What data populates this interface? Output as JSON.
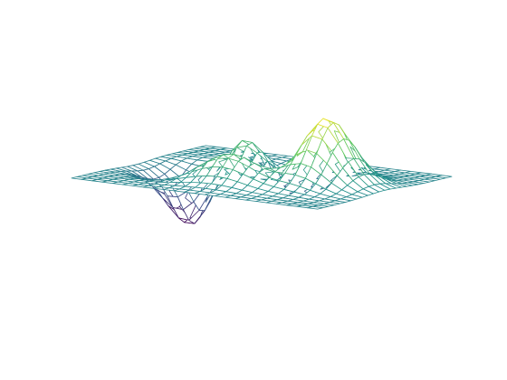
{
  "chart_data": {
    "type": "surface-mesh",
    "function": "peaks",
    "x_range": [
      -3,
      3
    ],
    "y_range": [
      -3,
      3
    ],
    "grid_size": 25,
    "z_range": [
      -6.55,
      8.1
    ],
    "axes_visible": false,
    "grid": false,
    "colormap": [
      "#440154",
      "#3b528b",
      "#21918c",
      "#5ec962",
      "#fde725"
    ]
  }
}
